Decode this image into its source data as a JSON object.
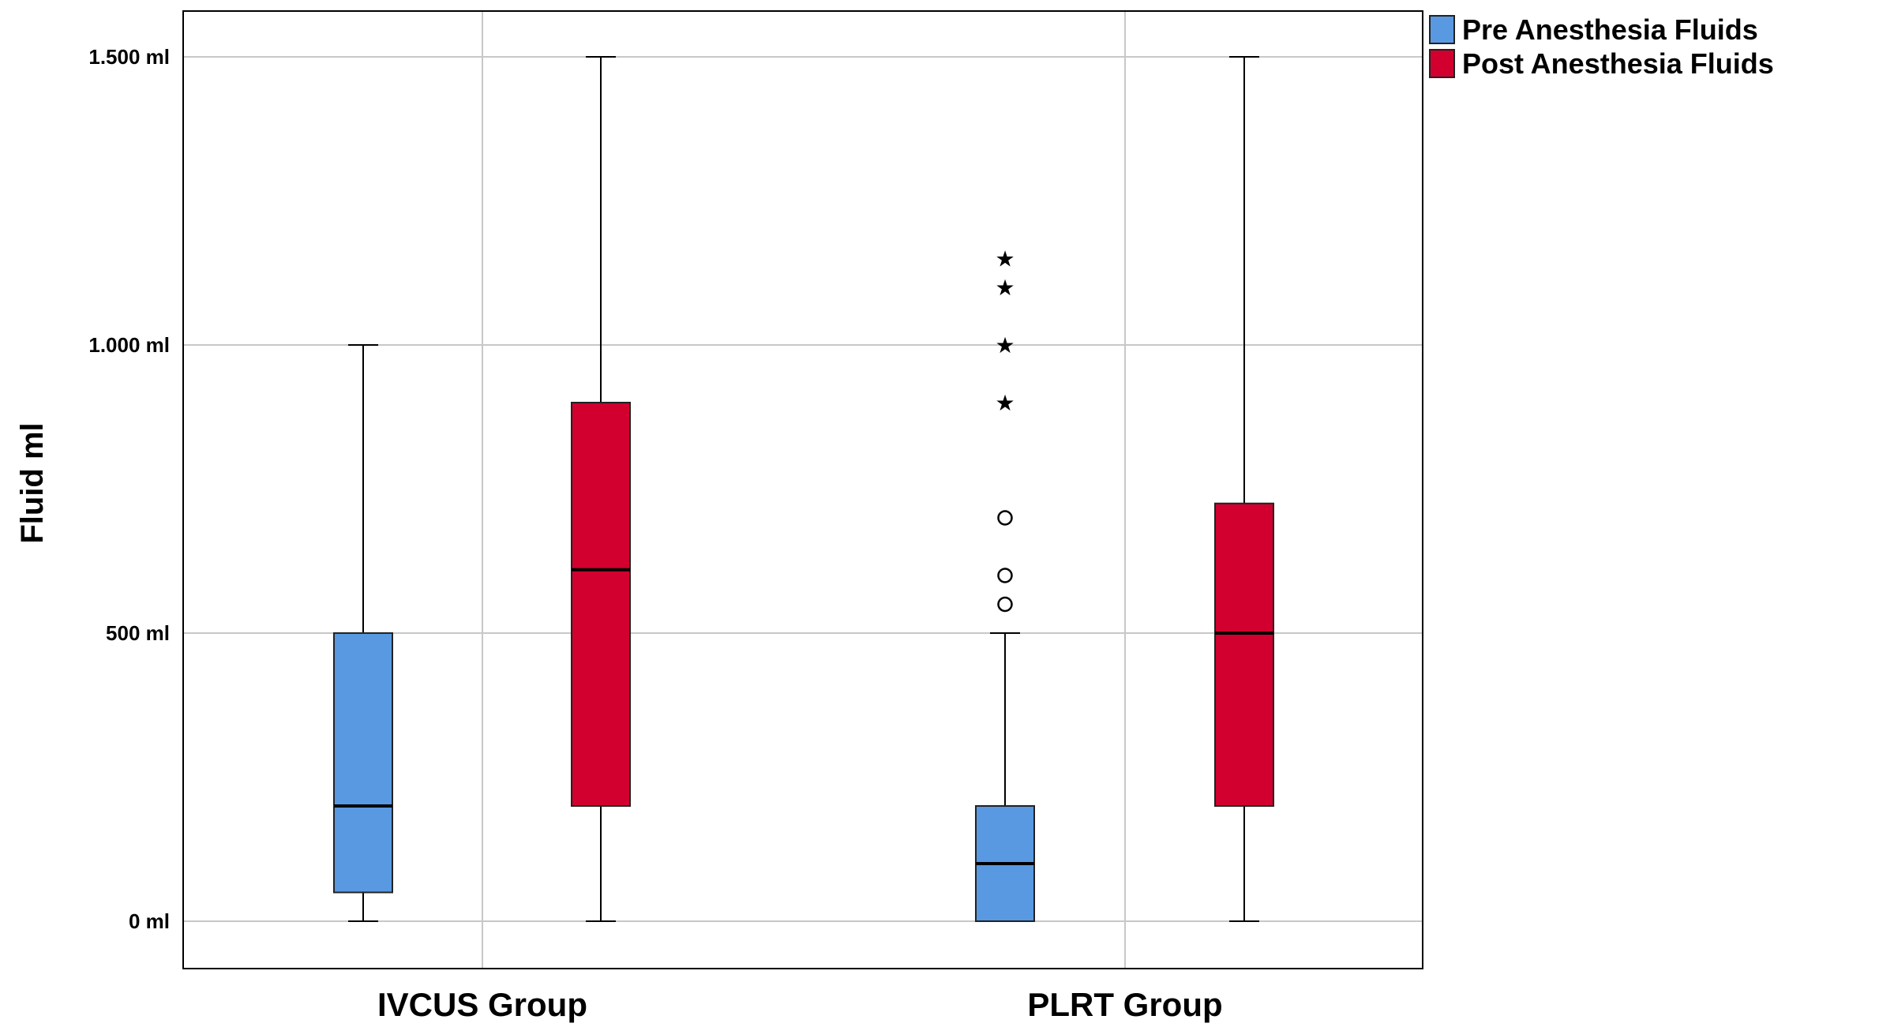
{
  "chart_data": {
    "type": "box",
    "ylabel": "Fluid ml",
    "ylim": [
      0,
      1500
    ],
    "y_ticks": [
      {
        "value": 0,
        "label": "0 ml"
      },
      {
        "value": 500,
        "label": "500 ml"
      },
      {
        "value": 1000,
        "label": "1.000 ml"
      },
      {
        "value": 1500,
        "label": "1.500 ml"
      }
    ],
    "categories": [
      "IVCUS Group",
      "PLRT Group"
    ],
    "grid": true,
    "legend_position": "top-right",
    "series": [
      {
        "name": "Pre Anesthesia Fluids",
        "color": "#5899E2",
        "boxes": [
          {
            "min": 0,
            "q1": 50,
            "median": 200,
            "q3": 500,
            "max": 1000,
            "outliers": [],
            "extremes": []
          },
          {
            "min": 0,
            "q1": 0,
            "median": 100,
            "q3": 200,
            "max": 500,
            "outliers": [
              550,
              600,
              700
            ],
            "extremes": [
              900,
              1000,
              1100,
              1150
            ]
          }
        ]
      },
      {
        "name": "Post Anesthesia Fluids",
        "color": "#D1002E",
        "boxes": [
          {
            "min": 0,
            "q1": 200,
            "median": 610,
            "q3": 900,
            "max": 1500,
            "outliers": [],
            "extremes": []
          },
          {
            "min": 0,
            "q1": 200,
            "median": 500,
            "q3": 725,
            "max": 1500,
            "outliers": [],
            "extremes": []
          }
        ]
      }
    ]
  }
}
